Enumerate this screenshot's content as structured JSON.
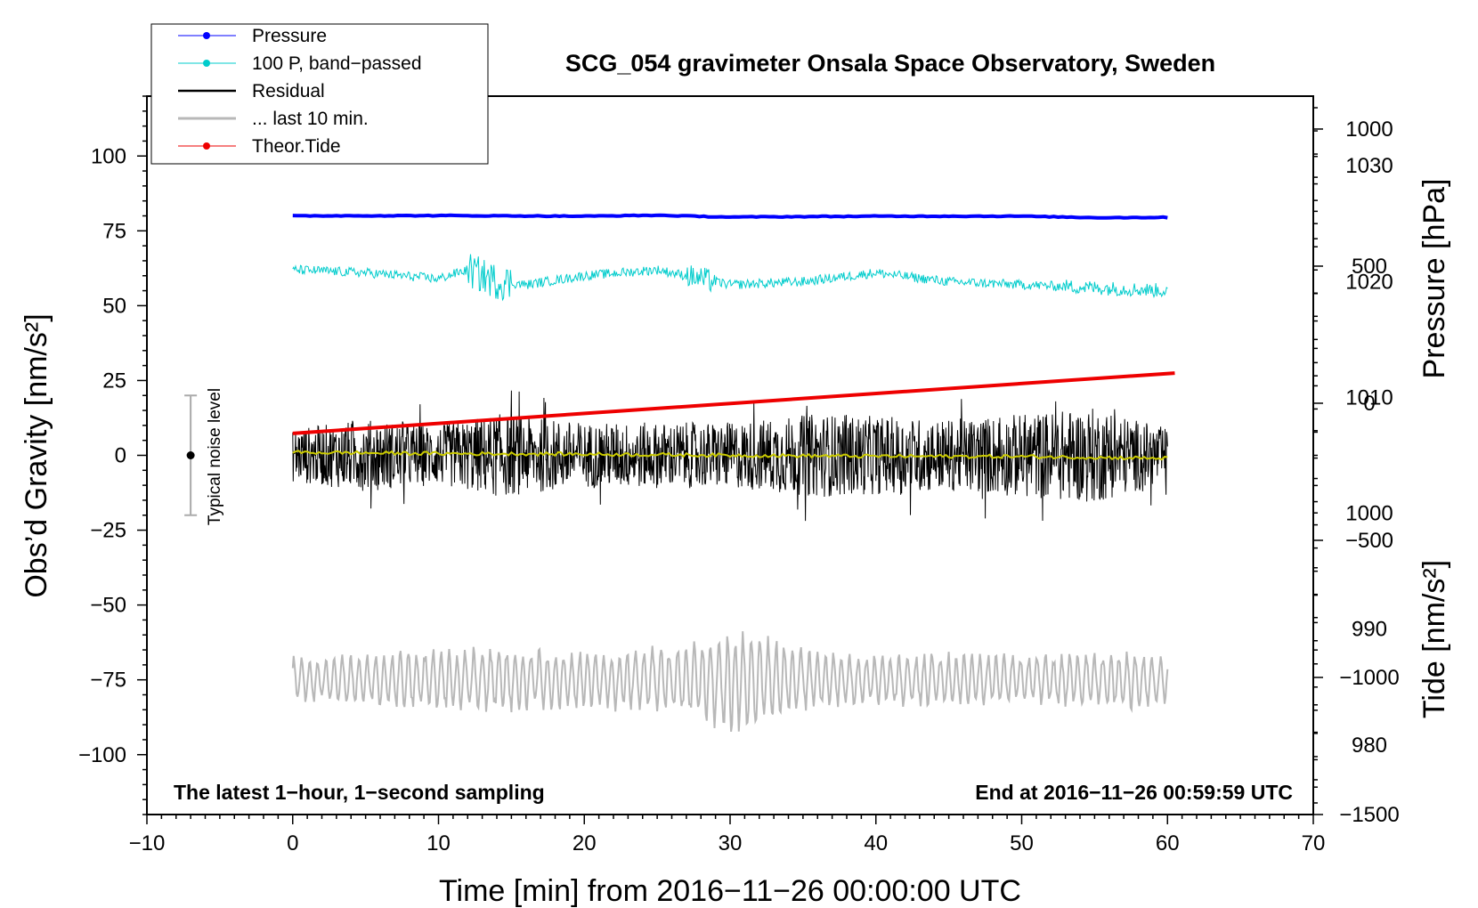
{
  "chart_data": {
    "type": "line",
    "title": "SCG_054 gravimeter Onsala Space Observatory, Sweden",
    "xlabel": "Time [min] from 2016−11−26 00:00:00 UTC",
    "ylabel_left": "Obs’d Gravity [nm/s²]",
    "ylabel_right_top": "Pressure [hPa]",
    "ylabel_right_bottom": "Tide [nm/s²]",
    "xlim": [
      -10,
      70
    ],
    "ylim": [
      -120,
      120
    ],
    "pressure_axis_range": [
      974,
      1036
    ],
    "tide_axis_range": [
      -1500,
      1120
    ],
    "x_ticks": [
      {
        "v": -10,
        "label": "−10"
      },
      {
        "v": 0,
        "label": "0"
      },
      {
        "v": 10,
        "label": "10"
      },
      {
        "v": 20,
        "label": "20"
      },
      {
        "v": 30,
        "label": "30"
      },
      {
        "v": 40,
        "label": "40"
      },
      {
        "v": 50,
        "label": "50"
      },
      {
        "v": 60,
        "label": "60"
      },
      {
        "v": 70,
        "label": "70"
      }
    ],
    "y_ticks": [
      {
        "v": 100,
        "label": "100"
      },
      {
        "v": 75,
        "label": "75"
      },
      {
        "v": 50,
        "label": "50"
      },
      {
        "v": 25,
        "label": "25"
      },
      {
        "v": 0,
        "label": "0"
      },
      {
        "v": -25,
        "label": "−25"
      },
      {
        "v": -50,
        "label": "−50"
      },
      {
        "v": -75,
        "label": "−75"
      },
      {
        "v": -100,
        "label": "−100"
      }
    ],
    "pressure_ticks": [
      {
        "v": 1030,
        "label": "1030"
      },
      {
        "v": 1020,
        "label": "1020"
      },
      {
        "v": 1010,
        "label": "1010"
      },
      {
        "v": 1000,
        "label": "1000"
      },
      {
        "v": 990,
        "label": "990"
      },
      {
        "v": 980,
        "label": "980"
      }
    ],
    "tide_ticks": [
      {
        "v": 1000,
        "label": "1000"
      },
      {
        "v": 500,
        "label": "500"
      },
      {
        "v": 0,
        "label": "0"
      },
      {
        "v": -500,
        "label": "−500"
      },
      {
        "v": -1000,
        "label": "−1000"
      },
      {
        "v": -1500,
        "label": "−1500"
      }
    ],
    "series": [
      {
        "name": "Pressure",
        "key": "pressure",
        "color": "#0000ff",
        "axis": "left",
        "x": [
          0,
          10,
          20,
          25,
          30,
          40,
          50,
          55,
          60
        ],
        "y": [
          80,
          80.1,
          79.9,
          80.2,
          79.6,
          79.9,
          79.9,
          79.4,
          79.5
        ]
      },
      {
        "name": "100 P, band−passed",
        "key": "bandpassed",
        "color": "#00cccc",
        "axis": "left",
        "x": [
          0,
          5,
          10,
          12,
          14,
          16,
          20,
          25,
          28,
          30,
          35,
          40,
          45,
          50,
          55,
          60
        ],
        "y": [
          62,
          61,
          59,
          62,
          58,
          57,
          60,
          62,
          59,
          57,
          58,
          61,
          58,
          57,
          56,
          55
        ]
      },
      {
        "name": "Residual",
        "key": "residual",
        "color": "#000000",
        "axis": "left",
        "x": [
          0,
          10,
          20,
          30,
          40,
          50,
          60
        ],
        "y": [
          0,
          0,
          0,
          0,
          0,
          0,
          0
        ],
        "spread": [
          [
            0,
            9
          ],
          [
            5,
            12
          ],
          [
            10,
            10
          ],
          [
            14,
            14
          ],
          [
            20,
            11
          ],
          [
            30,
            11
          ],
          [
            36,
            14
          ],
          [
            45,
            12
          ],
          [
            55,
            16
          ],
          [
            60,
            9
          ]
        ]
      },
      {
        "name": "... last 10 min.",
        "key": "last10",
        "color": "#b8b8b8",
        "axis": "left",
        "x": [
          0,
          5,
          10,
          15,
          20,
          25,
          28,
          30,
          32,
          35,
          40,
          45,
          50,
          55,
          58,
          60
        ],
        "amplitude": [
          8,
          9,
          11,
          12,
          10,
          12,
          15,
          19,
          17,
          11,
          9,
          10,
          9,
          10,
          11,
          8
        ],
        "center": -75
      },
      {
        "name": "Theor.Tide",
        "key": "tide",
        "color": "#ee0000",
        "axis": "tide",
        "x": [
          0,
          60.5
        ],
        "y": [
          -110,
          110
        ]
      }
    ],
    "moving_average": {
      "color": "#cccc00",
      "x": [
        0,
        10,
        20,
        30,
        40,
        50,
        60
      ],
      "y": [
        1,
        0.6,
        0.4,
        0,
        -0.3,
        -0.4,
        -1
      ]
    },
    "noise_bar": {
      "x": -7,
      "y": 0,
      "err": 20
    }
  },
  "annotations": {
    "left_note": "The latest 1−hour, 1−second sampling",
    "right_note": "End at 2016−11−26 00:59:59 UTC",
    "noise_label": "Typical noise level"
  }
}
